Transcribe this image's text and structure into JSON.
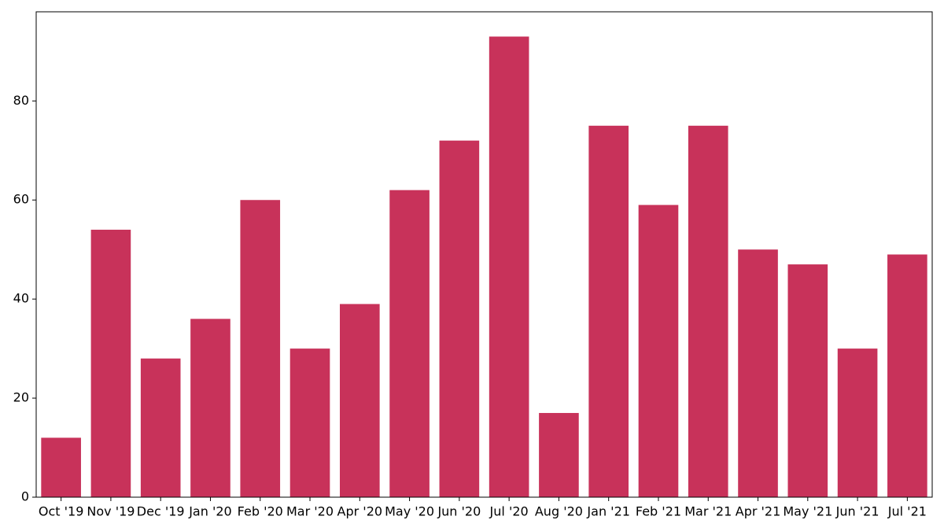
{
  "chart_data": {
    "type": "bar",
    "categories": [
      "Oct '19",
      "Nov '19",
      "Dec '19",
      "Jan '20",
      "Feb '20",
      "Mar '20",
      "Apr '20",
      "May '20",
      "Jun '20",
      "Jul '20",
      "Aug '20",
      "Jan '21",
      "Feb '21",
      "Mar '21",
      "Apr '21",
      "May '21",
      "Jun '21",
      "Jul '21"
    ],
    "values": [
      12,
      54,
      28,
      36,
      60,
      30,
      39,
      62,
      72,
      93,
      17,
      75,
      59,
      75,
      50,
      47,
      30,
      49
    ],
    "color": "#c8325a",
    "ylim": [
      0,
      98
    ],
    "yticks": [
      0,
      20,
      40,
      60,
      80
    ],
    "grid": false
  }
}
